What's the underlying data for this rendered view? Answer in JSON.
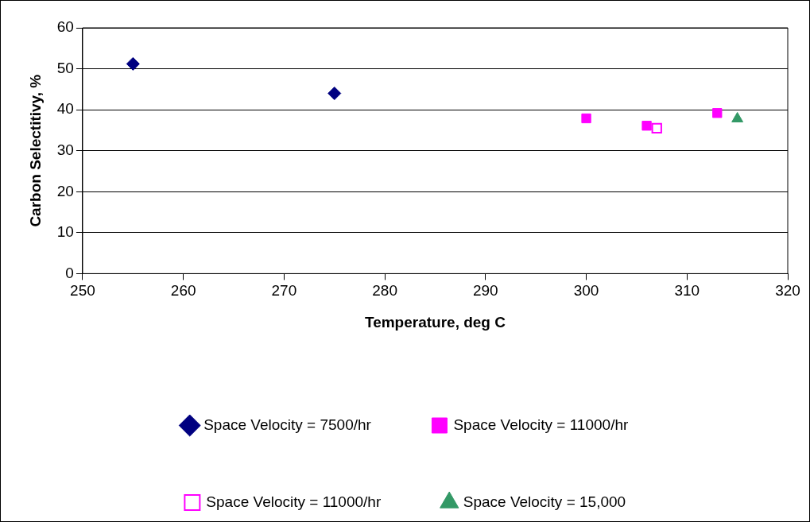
{
  "chart_data": {
    "type": "scatter",
    "xlabel": "Temperature, deg C",
    "ylabel": "Carbon Selectitivy, %",
    "xlim": [
      250,
      320
    ],
    "xticks": [
      250,
      260,
      270,
      280,
      290,
      300,
      310,
      320
    ],
    "ylim": [
      0,
      60
    ],
    "yticks": [
      0,
      10,
      20,
      30,
      40,
      50,
      60
    ],
    "grid": "y",
    "legend": "bottom",
    "series": [
      {
        "name": "Space Velocity = 7500/hr",
        "color": "#000080",
        "marker": "diamond",
        "x": [
          255,
          275
        ],
        "values": [
          51.2,
          44.0
        ]
      },
      {
        "name": "Space Velocity = 11000/hr",
        "color": "#ff00ff",
        "marker": "square",
        "x": [
          300,
          306,
          313
        ],
        "values": [
          37.9,
          36.1,
          39.2
        ]
      },
      {
        "name": "Space Velocity = 11000/hr",
        "color": "#ff00ff",
        "marker": "square",
        "x": [
          307
        ],
        "values": [
          35.5
        ]
      },
      {
        "name": "Space Velocity = 15,000",
        "color": "#339966",
        "marker": "triangle",
        "x": [
          315
        ],
        "values": [
          37.8
        ]
      }
    ]
  }
}
